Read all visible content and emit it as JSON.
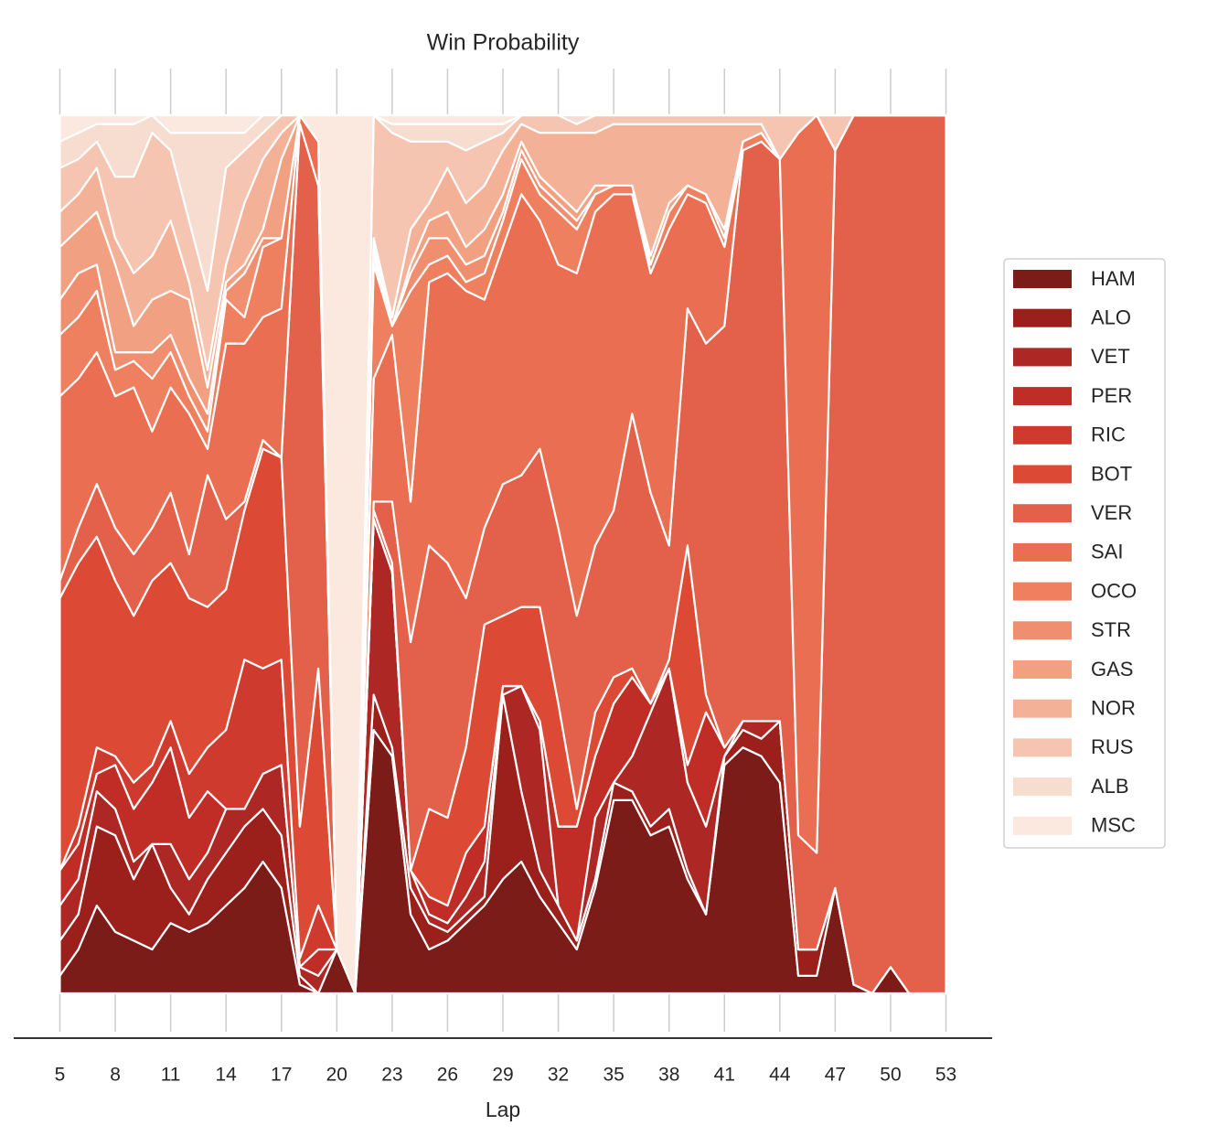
{
  "chart_data": {
    "type": "area",
    "stacked": true,
    "title": "Win Probability",
    "xlabel": "Lap",
    "x": [
      5,
      6,
      7,
      8,
      9,
      10,
      11,
      12,
      13,
      14,
      15,
      16,
      17,
      18,
      19,
      20,
      21,
      22,
      23,
      24,
      25,
      26,
      27,
      28,
      29,
      30,
      31,
      32,
      33,
      34,
      35,
      36,
      37,
      38,
      39,
      40,
      41,
      42,
      43,
      44,
      45,
      46,
      47,
      48,
      49,
      50,
      51,
      52,
      53
    ],
    "xlim": [
      2.5,
      55.5
    ],
    "xticks": [
      5,
      8,
      11,
      14,
      17,
      20,
      23,
      26,
      29,
      32,
      35,
      38,
      41,
      44,
      47,
      50,
      53
    ],
    "ylim": [
      0,
      1
    ],
    "grid": true,
    "legend": "right",
    "series": [
      {
        "name": "HAM",
        "color": "#7b1c18",
        "values": [
          0.02,
          0.05,
          0.1,
          0.07,
          0.06,
          0.05,
          0.08,
          0.07,
          0.08,
          0.1,
          0.12,
          0.15,
          0.12,
          0.01,
          0,
          0.05,
          0,
          0.3,
          0.27,
          0.09,
          0.05,
          0.06,
          0.08,
          0.1,
          0.13,
          0.15,
          0.11,
          0.08,
          0.05,
          0.12,
          0.22,
          0.22,
          0.18,
          0.19,
          0.13,
          0.09,
          0.26,
          0.28,
          0.27,
          0.24,
          0.02,
          0.02,
          0.12,
          0.01,
          0,
          0.03,
          0,
          0,
          0
        ]
      },
      {
        "name": "ALO",
        "color": "#9b201c",
        "values": [
          0.04,
          0.04,
          0.09,
          0.11,
          0.07,
          0.12,
          0.04,
          0.02,
          0.05,
          0.06,
          0.07,
          0.06,
          0.06,
          0.01,
          0,
          0,
          0,
          0.04,
          0.01,
          0.03,
          0.03,
          0.01,
          0.01,
          0.01,
          0.21,
          0.08,
          0.03,
          0.02,
          0.01,
          0.01,
          0.02,
          0.01,
          0.01,
          0.02,
          0.01,
          0,
          0.01,
          0.02,
          0.02,
          0.07,
          0.03,
          0.03,
          0,
          0,
          0,
          0,
          0,
          0,
          0
        ]
      },
      {
        "name": "VET",
        "color": "#ad2824",
        "values": [
          0.04,
          0.04,
          0.04,
          0.03,
          0.02,
          0,
          0.05,
          0.04,
          0.03,
          0.05,
          0.02,
          0.04,
          0.08,
          0.01,
          0.02,
          0,
          0,
          0.2,
          0.2,
          0.02,
          0.01,
          0.01,
          0.02,
          0.04,
          0,
          0.12,
          0.16,
          0,
          0,
          0.07,
          0,
          0.04,
          0.13,
          0.16,
          0.1,
          0.1,
          0,
          0.01,
          0.02,
          0,
          0,
          0,
          0,
          0,
          0,
          0,
          0,
          0,
          0
        ]
      },
      {
        "name": "PER",
        "color": "#c02d27",
        "values": [
          0.04,
          0.04,
          0.02,
          0.05,
          0.06,
          0.07,
          0.11,
          0.07,
          0.07,
          0,
          0,
          0,
          0,
          0,
          0.03,
          0,
          0,
          0,
          0,
          0,
          0.02,
          0.02,
          0.05,
          0.04,
          0.01,
          0,
          0.01,
          0.09,
          0.13,
          0.07,
          0.09,
          0.09,
          0.01,
          0,
          0.02,
          0.13,
          0.01,
          0,
          0,
          0,
          0,
          0,
          0,
          0,
          0,
          0,
          0,
          0,
          0
        ]
      },
      {
        "name": "RIC",
        "color": "#cf3a2e",
        "values": [
          0,
          0.02,
          0.03,
          0.01,
          0.03,
          0.02,
          0.03,
          0.05,
          0.05,
          0.09,
          0.17,
          0.12,
          0.12,
          0.01,
          0.05,
          0,
          0,
          0,
          0,
          0,
          0,
          0,
          0,
          0,
          0,
          0,
          0,
          0,
          0,
          0,
          0,
          0,
          0,
          0,
          0,
          0,
          0,
          0,
          0,
          0,
          0,
          0,
          0,
          0,
          0,
          0,
          0,
          0,
          0
        ]
      },
      {
        "name": "BOT",
        "color": "#dc4a35",
        "values": [
          0.31,
          0.3,
          0.24,
          0.2,
          0.19,
          0.21,
          0.18,
          0.2,
          0.16,
          0.16,
          0.17,
          0.25,
          0.23,
          0.15,
          0.27,
          0,
          0,
          0.01,
          0.01,
          0,
          0.1,
          0.1,
          0.12,
          0.23,
          0.08,
          0.09,
          0.13,
          0.14,
          0.02,
          0.05,
          0.03,
          0.01,
          0,
          0.01,
          0.25,
          0.02,
          0,
          0,
          0,
          0,
          0,
          0,
          0,
          0,
          0,
          0,
          0,
          0,
          0
        ]
      },
      {
        "name": "VER",
        "color": "#e3604a",
        "values": [
          0.02,
          0.04,
          0.06,
          0.06,
          0.07,
          0.06,
          0.08,
          0.05,
          0.15,
          0.08,
          0.01,
          0.01,
          0,
          0.8,
          0.55,
          0,
          0,
          0.01,
          0.07,
          0.26,
          0.3,
          0.29,
          0.17,
          0.11,
          0.15,
          0.15,
          0.18,
          0.2,
          0.22,
          0.19,
          0.19,
          0.29,
          0.24,
          0.13,
          0.27,
          0.4,
          0.48,
          0.65,
          0.66,
          0.64,
          0.13,
          0.11,
          0.84,
          0.99,
          1,
          0.97,
          1,
          1,
          1
        ]
      },
      {
        "name": "SAI",
        "color": "#ea6f52",
        "values": [
          0.21,
          0.17,
          0.15,
          0.15,
          0.19,
          0.11,
          0.12,
          0.16,
          0.03,
          0.2,
          0.18,
          0.14,
          0.17,
          0.01,
          0.05,
          0,
          0,
          0.14,
          0.19,
          0.16,
          0.3,
          0.33,
          0.35,
          0.26,
          0.27,
          0.32,
          0.26,
          0.3,
          0.39,
          0.38,
          0.36,
          0.25,
          0.25,
          0.36,
          0.13,
          0.16,
          0.09,
          0,
          0,
          0,
          0.8,
          0.84,
          0,
          0,
          0,
          0,
          0,
          0,
          0
        ]
      },
      {
        "name": "OCO",
        "color": "#ee7f5f",
        "values": [
          0.07,
          0.07,
          0.07,
          0.03,
          0.03,
          0.06,
          0.04,
          0.02,
          0.02,
          0.05,
          0.03,
          0.08,
          0.08,
          0,
          0,
          0,
          0,
          0.13,
          0.01,
          0.24,
          0.02,
          0.02,
          0.01,
          0.03,
          0.03,
          0.04,
          0.03,
          0.06,
          0.05,
          0.02,
          0.01,
          0.01,
          0.01,
          0.02,
          0.01,
          0.01,
          0.01,
          0.01,
          0.01,
          0,
          0,
          0,
          0,
          0,
          0,
          0,
          0,
          0,
          0
        ]
      },
      {
        "name": "STR",
        "color": "#f08f70",
        "values": [
          0.04,
          0.05,
          0.03,
          0.02,
          0.01,
          0.03,
          0.02,
          0.02,
          0.02,
          0.01,
          0.05,
          0.01,
          0,
          0,
          0,
          0,
          0,
          0.01,
          0,
          0.02,
          0.03,
          0.02,
          0.02,
          0.02,
          0.01,
          0.01,
          0.01,
          0.01,
          0.01,
          0,
          0,
          0,
          0,
          0,
          0,
          0,
          0,
          0,
          0,
          0,
          0,
          0,
          0,
          0,
          0,
          0,
          0,
          0,
          0
        ]
      },
      {
        "name": "GAS",
        "color": "#f1a182",
        "values": [
          0.06,
          0.05,
          0.06,
          0.1,
          0.03,
          0.06,
          0.05,
          0.09,
          0.03,
          0.01,
          0.01,
          0.01,
          0.09,
          0,
          0,
          0,
          0,
          0.01,
          0,
          0.01,
          0.02,
          0.03,
          0.02,
          0.03,
          0.02,
          0.01,
          0.01,
          0.01,
          0.01,
          0.01,
          0,
          0,
          0.01,
          0.01,
          0,
          0,
          0.01,
          0,
          0,
          0,
          0,
          0,
          0,
          0,
          0,
          0,
          0,
          0,
          0
        ]
      },
      {
        "name": "NOR",
        "color": "#f3b198",
        "values": [
          0.04,
          0.04,
          0.05,
          0.03,
          0.06,
          0.05,
          0.08,
          0.02,
          0.02,
          0.02,
          0.07,
          0.08,
          0.03,
          0,
          0,
          0,
          0,
          0.01,
          0.01,
          0.04,
          0.02,
          0.05,
          0.05,
          0.05,
          0.05,
          0.02,
          0.05,
          0.07,
          0.09,
          0.06,
          0.07,
          0.07,
          0.15,
          0.09,
          0.07,
          0.08,
          0.12,
          0.02,
          0.01,
          0,
          0,
          0,
          0,
          0,
          0,
          0,
          0,
          0,
          0
        ]
      },
      {
        "name": "RUS",
        "color": "#f5c5b2",
        "values": [
          0.05,
          0.04,
          0.03,
          0.07,
          0.11,
          0.14,
          0.08,
          0.07,
          0.09,
          0.11,
          0.06,
          0.03,
          0.02,
          0,
          0,
          0,
          0,
          0.14,
          0.21,
          0.1,
          0.07,
          0.03,
          0.06,
          0.05,
          0.02,
          0.01,
          0.02,
          0.02,
          0.01,
          0.02,
          0.01,
          0.01,
          0.01,
          0.01,
          0.01,
          0.01,
          0.01,
          0.01,
          0.01,
          0.05,
          0.02,
          0,
          0.04,
          0,
          0,
          0,
          0,
          0,
          0
        ]
      },
      {
        "name": "ALB",
        "color": "#f7dcd0",
        "values": [
          0.03,
          0.03,
          0.02,
          0.06,
          0.06,
          0.02,
          0.02,
          0.1,
          0.18,
          0.04,
          0.02,
          0.02,
          0,
          0,
          0,
          0,
          0,
          0,
          0.01,
          0.02,
          0.02,
          0.02,
          0.03,
          0.02,
          0.01,
          0,
          0,
          0,
          0.01,
          0,
          0,
          0,
          0,
          0,
          0,
          0,
          0,
          0,
          0,
          0,
          0,
          0,
          0,
          0,
          0,
          0,
          0,
          0,
          0
        ]
      },
      {
        "name": "MSC",
        "color": "#fbe8df",
        "values": [
          0.03,
          0.02,
          0.01,
          0.01,
          0.01,
          0,
          0.02,
          0.02,
          0.02,
          0.02,
          0.02,
          0,
          0,
          0,
          0.03,
          0.95,
          1,
          0,
          0.01,
          0.01,
          0.01,
          0.01,
          0.01,
          0.01,
          0.01,
          0,
          0,
          0,
          0,
          0,
          0,
          0,
          0,
          0,
          0,
          0,
          0,
          0,
          0,
          0,
          0,
          0,
          0,
          0,
          0,
          0,
          0,
          0,
          0
        ]
      }
    ]
  }
}
